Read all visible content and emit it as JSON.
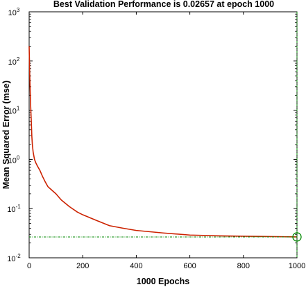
{
  "chart_data": {
    "type": "line",
    "title": "Best Validation Performance is 0.02657 at epoch 1000",
    "xlabel": "1000 Epochs",
    "ylabel": "Mean Squared Error  (mse)",
    "xlim": [
      0,
      1000
    ],
    "ylim": [
      0.01,
      1000
    ],
    "yscale": "log",
    "grid": false,
    "x_ticks": [
      "0",
      "200",
      "400",
      "600",
      "800",
      "1000"
    ],
    "y_ticks": [
      {
        "base": "10",
        "exp": "-2"
      },
      {
        "base": "10",
        "exp": "-1"
      },
      {
        "base": "10",
        "exp": "0"
      },
      {
        "base": "10",
        "exp": "1"
      },
      {
        "base": "10",
        "exp": "2"
      },
      {
        "base": "10",
        "exp": "3"
      }
    ],
    "series": [
      {
        "color": "#cc2200",
        "x": [
          0,
          2,
          5,
          8,
          10,
          12,
          15,
          20,
          25,
          30,
          40,
          50,
          60,
          70,
          80,
          100,
          120,
          150,
          180,
          200,
          250,
          300,
          350,
          400,
          500,
          600,
          700,
          800,
          900,
          1000
        ],
        "y": [
          200,
          60,
          15,
          6,
          3,
          2,
          1.4,
          1.0,
          0.85,
          0.75,
          0.6,
          0.45,
          0.35,
          0.28,
          0.25,
          0.2,
          0.15,
          0.11,
          0.085,
          0.075,
          0.058,
          0.045,
          0.04,
          0.036,
          0.032,
          0.029,
          0.028,
          0.0275,
          0.027,
          0.02657
        ]
      }
    ],
    "best": {
      "x": 1000,
      "y": 0.02657,
      "color": "#008800"
    }
  }
}
